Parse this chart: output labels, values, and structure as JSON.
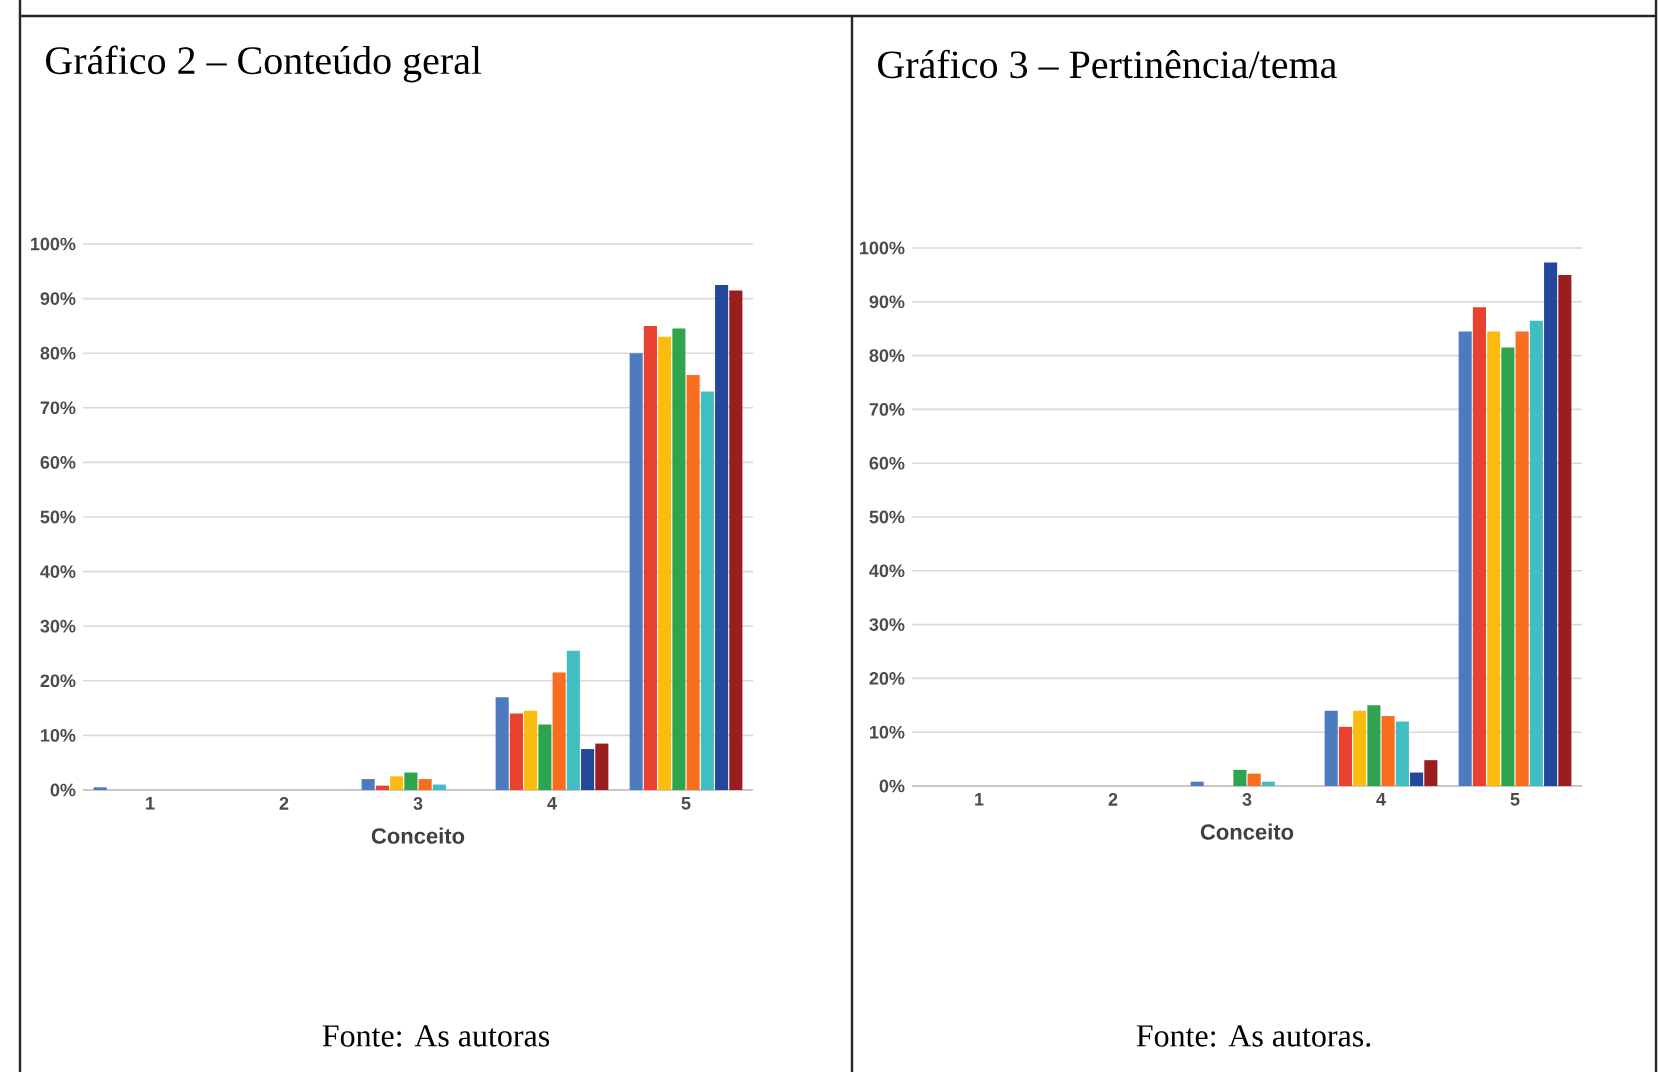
{
  "chart_data": [
    {
      "type": "bar",
      "title": "Gráfico 2 – Conteúdo geral",
      "xlabel": "Conceito",
      "categories": [
        "1",
        "2",
        "3",
        "4",
        "5"
      ],
      "series": [
        {
          "color": "#4e7ac0",
          "values": [
            0.5,
            0,
            2,
            17,
            80
          ]
        },
        {
          "color": "#e8412f",
          "values": [
            0,
            0,
            0.8,
            14,
            85
          ]
        },
        {
          "color": "#fbbc0f",
          "values": [
            0,
            0,
            2.5,
            14.5,
            83
          ]
        },
        {
          "color": "#2ea44f",
          "values": [
            0,
            0,
            3.2,
            12,
            84.5
          ]
        },
        {
          "color": "#f86d1e",
          "values": [
            0,
            0,
            2,
            21.5,
            76
          ]
        },
        {
          "color": "#41bec2",
          "values": [
            0,
            0,
            1,
            25.5,
            73
          ]
        },
        {
          "color": "#22479b",
          "values": [
            0,
            0,
            0,
            7.5,
            92.5
          ]
        },
        {
          "color": "#9a1d20",
          "values": [
            0,
            0,
            0,
            8.5,
            91.5
          ]
        }
      ],
      "ylim": [
        0,
        100
      ],
      "yticks": [
        {
          "value": 0,
          "label": "0%"
        },
        {
          "value": 10,
          "label": "10%"
        },
        {
          "value": 20,
          "label": "20%"
        },
        {
          "value": 30,
          "label": "30%"
        },
        {
          "value": 40,
          "label": "40%"
        },
        {
          "value": 50,
          "label": "50%"
        },
        {
          "value": 60,
          "label": "60%"
        },
        {
          "value": 70,
          "label": "70%"
        },
        {
          "value": 80,
          "label": "80%"
        },
        {
          "value": 90,
          "label": "90%"
        },
        {
          "value": 100,
          "label": "100%"
        }
      ],
      "grid": "y",
      "annotations": [
        "Fonte: As autoras"
      ]
    },
    {
      "type": "bar",
      "title": "Gráfico 3 – Pertinência/tema",
      "xlabel": "Conceito",
      "categories": [
        "1",
        "2",
        "3",
        "4",
        "5"
      ],
      "series": [
        {
          "color": "#4e7ac0",
          "values": [
            0,
            0,
            0.8,
            14,
            84.5
          ]
        },
        {
          "color": "#e8412f",
          "values": [
            0,
            0,
            0,
            11,
            89
          ]
        },
        {
          "color": "#fbbc0f",
          "values": [
            0,
            0,
            0,
            14,
            84.5
          ]
        },
        {
          "color": "#2ea44f",
          "values": [
            0,
            0,
            3,
            15,
            81.5
          ]
        },
        {
          "color": "#f86d1e",
          "values": [
            0,
            0,
            2.3,
            13,
            84.5
          ]
        },
        {
          "color": "#41bec2",
          "values": [
            0,
            0,
            0.8,
            12,
            86.5
          ]
        },
        {
          "color": "#22479b",
          "values": [
            0,
            0,
            0,
            2.5,
            97.3
          ]
        },
        {
          "color": "#9a1d20",
          "values": [
            0,
            0,
            0,
            4.8,
            95
          ]
        }
      ],
      "ylim": [
        0,
        100
      ],
      "yticks": [
        {
          "value": 0,
          "label": "0%"
        },
        {
          "value": 10,
          "label": "10%"
        },
        {
          "value": 20,
          "label": "20%"
        },
        {
          "value": 30,
          "label": "30%"
        },
        {
          "value": 40,
          "label": "40%"
        },
        {
          "value": 50,
          "label": "50%"
        },
        {
          "value": 60,
          "label": "60%"
        },
        {
          "value": 70,
          "label": "70%"
        },
        {
          "value": 80,
          "label": "80%"
        },
        {
          "value": 90,
          "label": "90%"
        },
        {
          "value": 100,
          "label": "100%"
        }
      ],
      "grid": "y",
      "annotations": [
        "Fonte: As autoras."
      ]
    }
  ]
}
